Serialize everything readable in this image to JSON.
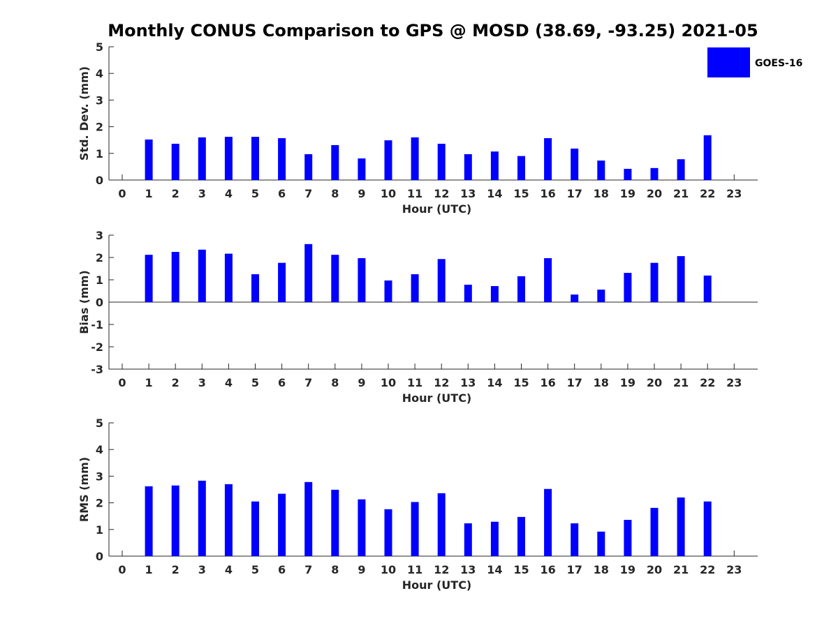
{
  "title": "Monthly CONUS Comparison to GPS @ MOSD (38.69, -93.25) 2021-05",
  "bar_color": "#0000ff",
  "chart_data": [
    {
      "type": "bar",
      "title": "",
      "xlabel": "Hour (UTC)",
      "ylabel": "Std. Dev. (mm)",
      "categories": [
        "0",
        "1",
        "2",
        "3",
        "4",
        "5",
        "6",
        "7",
        "8",
        "9",
        "10",
        "11",
        "12",
        "13",
        "14",
        "15",
        "16",
        "17",
        "18",
        "19",
        "20",
        "21",
        "22",
        "23"
      ],
      "yticks": [
        "0",
        "1",
        "2",
        "3",
        "4",
        "5"
      ],
      "ylim": [
        0,
        5
      ],
      "grid": false,
      "legend": {
        "entries": [
          "GOES-16"
        ],
        "placement": "top-right"
      },
      "series": [
        {
          "name": "GOES-16",
          "values": [
            null,
            1.52,
            1.36,
            1.6,
            1.62,
            1.62,
            1.57,
            0.97,
            1.31,
            0.81,
            1.49,
            1.6,
            1.36,
            0.97,
            1.07,
            0.9,
            1.57,
            1.18,
            0.73,
            0.42,
            0.45,
            0.78,
            1.68,
            null
          ]
        }
      ]
    },
    {
      "type": "bar",
      "title": "",
      "xlabel": "Hour (UTC)",
      "ylabel": "Bias (mm)",
      "categories": [
        "0",
        "1",
        "2",
        "3",
        "4",
        "5",
        "6",
        "7",
        "8",
        "9",
        "10",
        "11",
        "12",
        "13",
        "14",
        "15",
        "16",
        "17",
        "18",
        "19",
        "20",
        "21",
        "22",
        "23"
      ],
      "yticks": [
        "-3",
        "-2",
        "-1",
        "0",
        "1",
        "2",
        "3"
      ],
      "ylim": [
        -3,
        3
      ],
      "grid": false,
      "series": [
        {
          "name": "GOES-16",
          "values": [
            null,
            2.12,
            2.25,
            2.35,
            2.17,
            1.25,
            1.76,
            2.6,
            2.12,
            1.97,
            0.97,
            1.25,
            1.93,
            0.78,
            0.72,
            1.16,
            1.97,
            0.34,
            0.56,
            1.31,
            1.76,
            2.06,
            1.19,
            null
          ]
        }
      ]
    },
    {
      "type": "bar",
      "title": "",
      "xlabel": "Hour (UTC)",
      "ylabel": "RMS (mm)",
      "categories": [
        "0",
        "1",
        "2",
        "3",
        "4",
        "5",
        "6",
        "7",
        "8",
        "9",
        "10",
        "11",
        "12",
        "13",
        "14",
        "15",
        "16",
        "17",
        "18",
        "19",
        "20",
        "21",
        "22",
        "23"
      ],
      "yticks": [
        "0",
        "1",
        "2",
        "3",
        "4",
        "5"
      ],
      "ylim": [
        0,
        5
      ],
      "grid": false,
      "series": [
        {
          "name": "GOES-16",
          "values": [
            null,
            2.62,
            2.65,
            2.83,
            2.7,
            2.05,
            2.34,
            2.78,
            2.49,
            2.13,
            1.76,
            2.03,
            2.36,
            1.23,
            1.29,
            1.47,
            2.52,
            1.23,
            0.92,
            1.36,
            1.81,
            2.2,
            2.05,
            null
          ]
        }
      ]
    }
  ]
}
